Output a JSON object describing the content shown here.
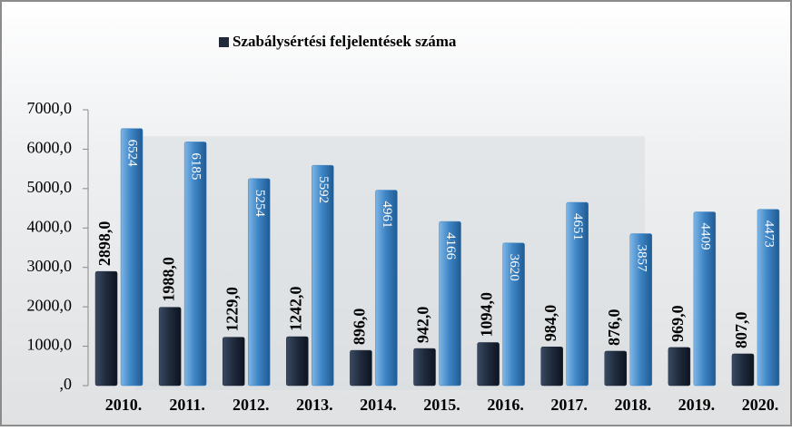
{
  "chart_data": {
    "type": "bar",
    "categories": [
      "2010.",
      "2011.",
      "2012.",
      "2013.",
      "2014.",
      "2015.",
      "2016.",
      "2017.",
      "2018.",
      "2019.",
      "2020."
    ],
    "series": [
      {
        "name": "Szabálysértési feljelentések száma",
        "color": "#1f2a3c",
        "values": [
          2898,
          1988,
          1229,
          1242,
          896,
          942,
          1094,
          984,
          876,
          969,
          807
        ],
        "value_labels": [
          "2898,0",
          "1988,0",
          "1229,0",
          "1242,0",
          "896,0",
          "942,0",
          "1094,0",
          "984,0",
          "876,0",
          "969,0",
          "807,0"
        ]
      },
      {
        "color": "#3f86c6",
        "values": [
          6524,
          6185,
          5254,
          5592,
          4961,
          4166,
          3620,
          4651,
          3857,
          4409,
          4473
        ]
      }
    ],
    "ylim": [
      0,
      7000
    ],
    "yticks": [
      {
        "value": 0,
        "label": ",0"
      },
      {
        "value": 1000,
        "label": "1000,0"
      },
      {
        "value": 2000,
        "label": "2000,0"
      },
      {
        "value": 3000,
        "label": "3000,0"
      },
      {
        "value": 4000,
        "label": "4000,0"
      },
      {
        "value": 5000,
        "label": "5000,0"
      },
      {
        "value": 6000,
        "label": "6000,0"
      },
      {
        "value": 7000,
        "label": "7000,0"
      }
    ],
    "grid": false
  }
}
